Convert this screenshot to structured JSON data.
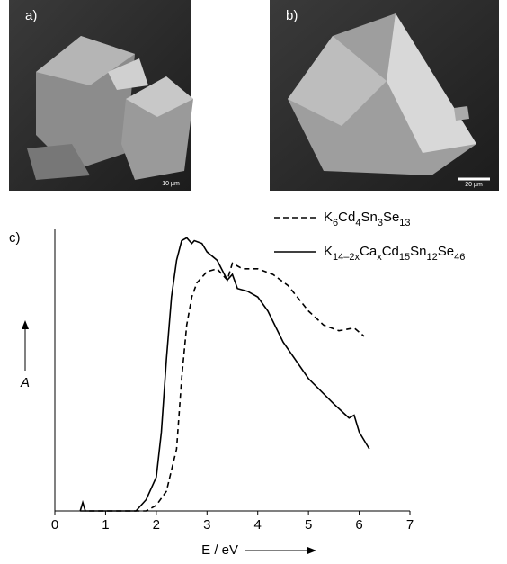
{
  "images": [
    {
      "label": "a)",
      "scale": "10 µm"
    },
    {
      "label": "b)",
      "scale": "20 µm"
    }
  ],
  "chart_data": {
    "type": "line",
    "panel_label": "c)",
    "xlabel": "E / eV",
    "ylabel": "A",
    "xlim": [
      0,
      7
    ],
    "xticks": [
      0,
      1,
      2,
      3,
      4,
      5,
      6,
      7
    ],
    "ylim": [
      0,
      1
    ],
    "series": [
      {
        "name": "K6Cd4Sn3Se13",
        "color": "#000000",
        "dash": true,
        "x": [
          0.5,
          1.8,
          2.0,
          2.2,
          2.4,
          2.5,
          2.6,
          2.7,
          2.8,
          3.0,
          3.2,
          3.4,
          3.5,
          3.7,
          4.0,
          4.3,
          4.6,
          5.0,
          5.3,
          5.6,
          5.9,
          6.1
        ],
        "values": [
          0,
          0,
          0.02,
          0.07,
          0.22,
          0.47,
          0.66,
          0.76,
          0.81,
          0.85,
          0.86,
          0.82,
          0.88,
          0.86,
          0.86,
          0.84,
          0.8,
          0.71,
          0.66,
          0.64,
          0.65,
          0.62
        ]
      },
      {
        "name": "K14–2xCaxCd15Sn12Se46",
        "color": "#000000",
        "dash": false,
        "x": [
          0.5,
          0.55,
          0.6,
          1.6,
          1.8,
          2.0,
          2.1,
          2.2,
          2.3,
          2.4,
          2.5,
          2.6,
          2.7,
          2.75,
          2.9,
          3.0,
          3.2,
          3.4,
          3.5,
          3.6,
          3.8,
          4.0,
          4.2,
          4.5,
          5.0,
          5.5,
          5.8,
          5.9,
          6.0,
          6.2
        ],
        "values": [
          0,
          0.03,
          0,
          0,
          0.04,
          0.12,
          0.28,
          0.54,
          0.76,
          0.89,
          0.96,
          0.97,
          0.95,
          0.96,
          0.95,
          0.92,
          0.89,
          0.82,
          0.84,
          0.79,
          0.78,
          0.76,
          0.71,
          0.6,
          0.47,
          0.38,
          0.33,
          0.34,
          0.28,
          0.22
        ]
      }
    ]
  }
}
